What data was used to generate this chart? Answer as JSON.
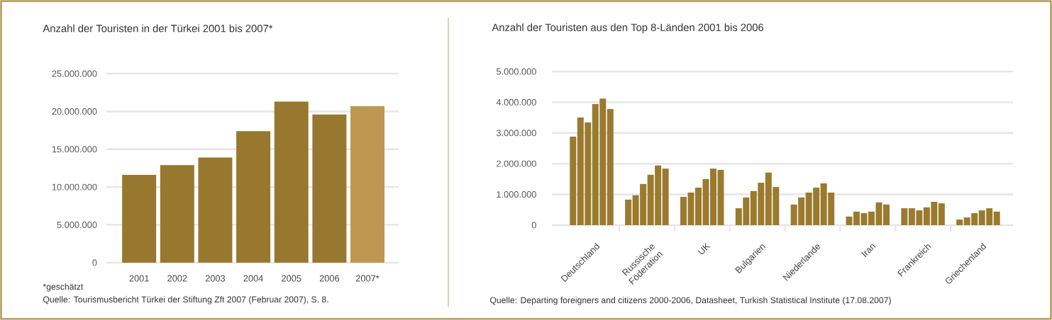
{
  "chart_data": [
    {
      "type": "bar",
      "title": "Anzahl der Touristen in der Türkei 2001 bis 2007*",
      "categories": [
        "2001",
        "2002",
        "2003",
        "2004",
        "2005",
        "2006",
        "2007*"
      ],
      "values": [
        11600000,
        12900000,
        13900000,
        17400000,
        21300000,
        19600000,
        20700000
      ],
      "colors": [
        "#98782e",
        "#98782e",
        "#98782e",
        "#98782e",
        "#98782e",
        "#98782e",
        "#be9850"
      ],
      "ylim": [
        0,
        25000000
      ],
      "yticks": [
        0,
        {
          "value": 5000000,
          "label": "5.000.000"
        },
        {
          "value": 10000000,
          "label": "10.000.000"
        },
        {
          "value": 15000000,
          "label": "15.000.000"
        },
        {
          "value": 20000000,
          "label": "20.000.000"
        },
        {
          "value": 25000000,
          "label": "25.000.000"
        }
      ],
      "grid": "y",
      "annotations": [
        "*geschätzt",
        "Quelle: Tourismusbericht Türkei der Stiftung Zft 2007 (Februar 2007), S. 8."
      ]
    },
    {
      "type": "bar",
      "title": "Anzahl der Touristen aus den Top 8-Länden 2001 bis 2006",
      "categories": [
        "Deutschland",
        "Russische Föderation",
        "UK",
        "Bulgarien",
        "Niederlande",
        "Iran",
        "Frankreich",
        "Griechenland"
      ],
      "series": [
        {
          "color": "#9a7a2e",
          "values": [
            2880000,
            830000,
            920000,
            550000,
            670000,
            280000,
            550000,
            180000
          ]
        },
        {
          "color": "#9a7a2e",
          "values": [
            3500000,
            970000,
            1060000,
            900000,
            900000,
            440000,
            550000,
            250000
          ]
        },
        {
          "color": "#9a7a2e",
          "values": [
            3340000,
            1340000,
            1220000,
            1110000,
            1060000,
            390000,
            480000,
            390000
          ]
        },
        {
          "color": "#9a7a2e",
          "values": [
            3940000,
            1640000,
            1500000,
            1380000,
            1220000,
            440000,
            580000,
            480000
          ]
        },
        {
          "color": "#9a7a2e",
          "values": [
            4120000,
            1940000,
            1840000,
            1710000,
            1360000,
            740000,
            760000,
            550000
          ]
        },
        {
          "color": "#9a7a2e",
          "values": [
            3780000,
            1840000,
            1800000,
            1240000,
            1060000,
            670000,
            710000,
            440000
          ]
        }
      ],
      "ylim": [
        0,
        5000000
      ],
      "yticks": [
        0,
        {
          "value": 1000000,
          "label": "1.000.000"
        },
        {
          "value": 2000000,
          "label": "2.000.000"
        },
        {
          "value": 3000000,
          "label": "3.000.000"
        },
        {
          "value": 4000000,
          "label": "4.000.000"
        },
        {
          "value": 5000000,
          "label": "5.000.000"
        }
      ],
      "grid": "y",
      "annotations": [
        "Quelle: Departing foreigners and citizens 2000-2006, Datasheet, Turkish Statistical Institute (17.08.2007)"
      ]
    }
  ]
}
